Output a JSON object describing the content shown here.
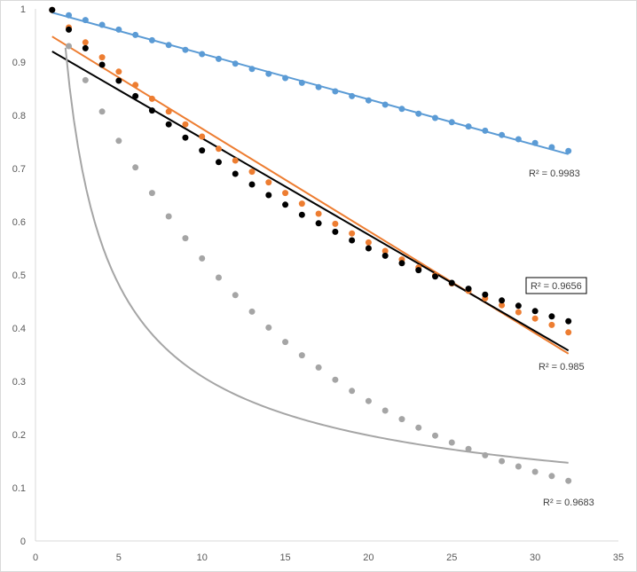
{
  "chart_data": {
    "type": "scatter",
    "xlim": [
      0,
      35
    ],
    "ylim": [
      0,
      1
    ],
    "x_ticks": [
      "0",
      "5",
      "10",
      "15",
      "20",
      "25",
      "30",
      "35"
    ],
    "y_ticks": [
      "0",
      "0.1",
      "0.2",
      "0.3",
      "0.4",
      "0.5",
      "0.6",
      "0.7",
      "0.8",
      "0.9",
      "1"
    ],
    "grid": false,
    "legend": "none",
    "series": [
      {
        "color": "#5B9BD5",
        "x": [
          1,
          2,
          3,
          4,
          5,
          6,
          7,
          8,
          9,
          10,
          11,
          12,
          13,
          14,
          15,
          16,
          17,
          18,
          19,
          20,
          21,
          22,
          23,
          24,
          25,
          26,
          27,
          28,
          29,
          30,
          31,
          32
        ],
        "y": [
          0.998,
          0.988,
          0.979,
          0.97,
          0.961,
          0.951,
          0.941,
          0.932,
          0.923,
          0.915,
          0.906,
          0.897,
          0.887,
          0.878,
          0.87,
          0.861,
          0.853,
          0.845,
          0.836,
          0.828,
          0.82,
          0.812,
          0.803,
          0.795,
          0.787,
          0.779,
          0.771,
          0.763,
          0.755,
          0.748,
          0.74,
          0.733
        ],
        "trendline": {
          "type": "linear",
          "y_start": 0.993,
          "y_end": 0.727
        },
        "r2_label": "R² = 0.9983"
      },
      {
        "color": "#ED7D31",
        "x": [
          1,
          2,
          3,
          4,
          5,
          6,
          7,
          8,
          9,
          10,
          11,
          12,
          13,
          14,
          15,
          16,
          17,
          18,
          19,
          20,
          21,
          22,
          23,
          24,
          25,
          26,
          27,
          28,
          29,
          30,
          31,
          32
        ],
        "y": [
          0.998,
          0.965,
          0.937,
          0.909,
          0.882,
          0.857,
          0.831,
          0.807,
          0.783,
          0.76,
          0.737,
          0.715,
          0.694,
          0.674,
          0.654,
          0.634,
          0.615,
          0.596,
          0.578,
          0.561,
          0.545,
          0.529,
          0.514,
          0.499,
          0.484,
          0.47,
          0.456,
          0.443,
          0.43,
          0.418,
          0.406,
          0.392
        ],
        "trendline": {
          "type": "linear",
          "y_start": 0.948,
          "y_end": 0.352
        },
        "r2_label": "R² = 0.985"
      },
      {
        "color": "#000000",
        "x": [
          1,
          2,
          3,
          4,
          5,
          6,
          7,
          8,
          9,
          10,
          11,
          12,
          13,
          14,
          15,
          16,
          17,
          18,
          19,
          20,
          21,
          22,
          23,
          24,
          25,
          26,
          27,
          28,
          29,
          30,
          31,
          32
        ],
        "y": [
          0.998,
          0.961,
          0.926,
          0.895,
          0.865,
          0.836,
          0.809,
          0.783,
          0.758,
          0.734,
          0.712,
          0.69,
          0.67,
          0.65,
          0.632,
          0.613,
          0.597,
          0.581,
          0.565,
          0.55,
          0.536,
          0.522,
          0.509,
          0.497,
          0.485,
          0.474,
          0.463,
          0.452,
          0.442,
          0.432,
          0.422,
          0.413
        ],
        "trendline": {
          "type": "linear",
          "y_start": 0.92,
          "y_end": 0.358
        },
        "r2_label": "R² = 0.9656"
      },
      {
        "color": "#A5A5A5",
        "x": [
          2,
          3,
          4,
          5,
          6,
          7,
          8,
          9,
          10,
          11,
          12,
          13,
          14,
          15,
          16,
          17,
          18,
          19,
          20,
          21,
          22,
          23,
          24,
          25,
          26,
          27,
          28,
          29,
          30,
          31,
          32
        ],
        "y": [
          0.93,
          0.866,
          0.807,
          0.752,
          0.702,
          0.654,
          0.61,
          0.569,
          0.531,
          0.495,
          0.462,
          0.431,
          0.401,
          0.374,
          0.349,
          0.326,
          0.303,
          0.282,
          0.263,
          0.245,
          0.229,
          0.213,
          0.198,
          0.185,
          0.173,
          0.161,
          0.15,
          0.14,
          0.13,
          0.122,
          0.113
        ],
        "trendline": {
          "type": "power",
          "x_from": 1.8,
          "x_to": 32,
          "y_at_x1": 1.35,
          "exponent": -0.64
        },
        "r2_label": "R² = 0.9683"
      }
    ]
  }
}
